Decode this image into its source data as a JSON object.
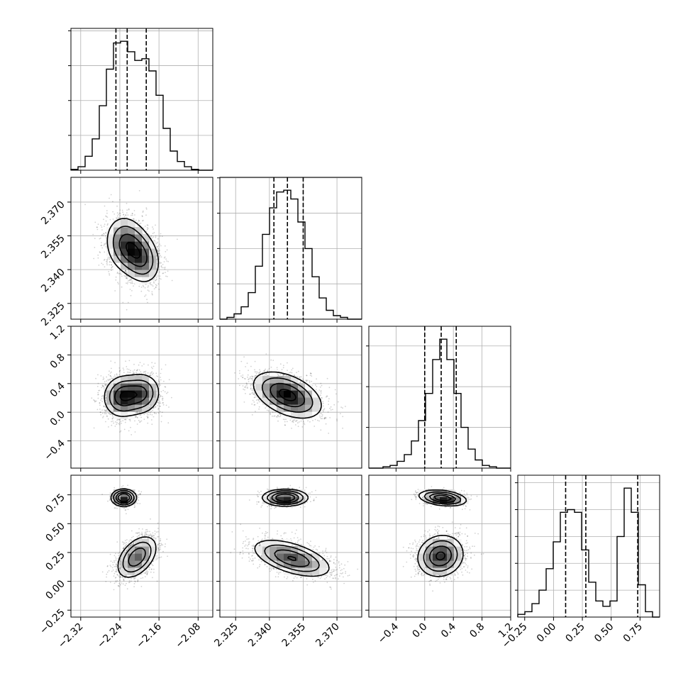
{
  "chart_data": {
    "type": "corner",
    "title": "",
    "parameters": [
      {
        "label": "",
        "range": [
          -2.34,
          -2.05
        ],
        "ticks": [
          -2.32,
          -2.24,
          -2.16,
          -2.08
        ],
        "tick_labels": [
          "−2.32",
          "−2.24",
          "−2.16",
          "−2.08"
        ]
      },
      {
        "label": "",
        "range": [
          2.318,
          2.381
        ],
        "ticks": [
          2.325,
          2.34,
          2.355,
          2.37
        ],
        "tick_labels": [
          "2.325",
          "2.340",
          "2.355",
          "2.370"
        ]
      },
      {
        "label": "",
        "range": [
          -0.78,
          1.2
        ],
        "ticks": [
          -0.4,
          0.0,
          0.4,
          0.8,
          1.2
        ],
        "tick_labels": [
          "−0.4",
          "0.0",
          "0.4",
          "0.8",
          "1.2"
        ]
      },
      {
        "label": "",
        "range": [
          -0.31,
          0.92
        ],
        "ticks": [
          -0.25,
          0.0,
          0.25,
          0.5,
          0.75
        ],
        "tick_labels": [
          "−0.25",
          "0.00",
          "0.25",
          "0.50",
          "0.75"
        ]
      }
    ],
    "quantiles": [
      [
        -2.248,
        -2.225,
        -2.186
      ],
      [
        2.342,
        2.348,
        2.355
      ],
      [
        0.0,
        0.23,
        0.44
      ],
      [
        0.105,
        0.28,
        0.73
      ]
    ],
    "histograms": [
      {
        "counts": [
          0.5,
          2,
          8,
          18,
          37,
          58,
          73,
          74,
          68,
          63,
          64,
          57,
          43,
          24,
          11,
          5,
          2,
          0.5,
          0,
          0
        ]
      },
      {
        "counts": [
          0,
          1,
          3,
          7,
          15,
          30,
          48,
          63,
          72,
          73,
          68,
          55,
          40,
          24,
          12,
          5,
          2,
          1,
          0,
          0
        ]
      },
      {
        "counts": [
          0,
          0,
          1,
          2,
          5,
          10,
          20,
          35,
          55,
          80,
          95,
          80,
          55,
          30,
          14,
          6,
          2,
          1,
          0,
          0
        ]
      },
      {
        "counts": [
          1,
          2,
          5,
          10,
          18,
          28,
          39,
          40,
          39,
          25,
          13,
          6,
          4,
          6,
          30,
          48,
          39,
          12,
          2,
          0
        ]
      }
    ],
    "pairs": [
      {
        "row": 1,
        "col": 0,
        "modes": [
          {
            "mu": [
              -2.226,
              2.351
            ],
            "sd": [
              0.022,
              0.0065
            ],
            "rho": -0.15,
            "w": 0.6
          },
          {
            "mu": [
              -2.195,
              2.345
            ],
            "sd": [
              0.02,
              0.006
            ],
            "rho": -0.2,
            "w": 0.4
          }
        ]
      },
      {
        "row": 2,
        "col": 0,
        "modes": [
          {
            "mu": [
              -2.235,
              0.22
            ],
            "sd": [
              0.02,
              0.15
            ],
            "rho": 0.05,
            "w": 0.55
          },
          {
            "mu": [
              -2.195,
              0.26
            ],
            "sd": [
              0.02,
              0.15
            ],
            "rho": 0.05,
            "w": 0.45
          }
        ]
      },
      {
        "row": 2,
        "col": 1,
        "modes": [
          {
            "mu": [
              2.348,
              0.24
            ],
            "sd": [
              0.0075,
              0.16
            ],
            "rho": -0.45,
            "w": 1.0
          }
        ]
      },
      {
        "row": 3,
        "col": 0,
        "modes": [
          {
            "mu": [
              -2.232,
              0.725
            ],
            "sd": [
              0.012,
              0.035
            ],
            "rho": 0.0,
            "w": 0.3
          },
          {
            "mu": [
              -2.205,
              0.21
            ],
            "sd": [
              0.02,
              0.09
            ],
            "rho": 0.45,
            "w": 0.7
          }
        ]
      },
      {
        "row": 3,
        "col": 1,
        "modes": [
          {
            "mu": [
              2.347,
              0.725
            ],
            "sd": [
              0.0048,
              0.035
            ],
            "rho": 0.0,
            "w": 0.3
          },
          {
            "mu": [
              2.35,
              0.2
            ],
            "sd": [
              0.0085,
              0.08
            ],
            "rho": -0.55,
            "w": 0.7
          }
        ]
      },
      {
        "row": 3,
        "col": 2,
        "modes": [
          {
            "mu": [
              0.25,
              0.722
            ],
            "sd": [
              0.16,
              0.033
            ],
            "rho": -0.3,
            "w": 0.3
          },
          {
            "mu": [
              0.22,
              0.22
            ],
            "sd": [
              0.16,
              0.09
            ],
            "rho": 0.1,
            "w": 0.7
          }
        ]
      }
    ],
    "grid": true,
    "legend": "none"
  }
}
